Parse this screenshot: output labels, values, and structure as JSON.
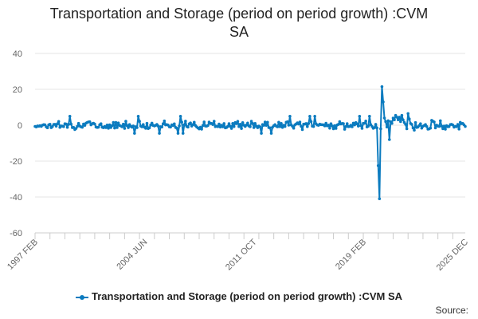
{
  "chart_data": {
    "type": "line",
    "title": "Transportation and Storage (period on period growth) :CVM SA",
    "title_lines": [
      "Transportation and Storage (period on period growth) :CVM",
      "SA"
    ],
    "xlabel": "",
    "ylabel": "",
    "ylim": [
      -60,
      40
    ],
    "yticks": [
      40,
      20,
      0,
      -20,
      -40,
      -60
    ],
    "x_range": [
      "1997 FEB",
      "2025 DEC"
    ],
    "xticks": [
      "1997 FEB",
      "2004 JUN",
      "2011 OCT",
      "2019 FEB",
      "2025 DEC"
    ],
    "grid": true,
    "legend_position": "bottom",
    "series": [
      {
        "name": "Transportation and Storage (period on period growth) :CVM SA",
        "color": "#0b7bbf",
        "frequency": "monthly",
        "start": "1997 FEB",
        "baseline_band": [
          -3,
          3
        ],
        "x": [
          "2019 DEC",
          "2020 JAN",
          "2020 FEB",
          "2020 MAR",
          "2020 APR",
          "2020 MAY",
          "2020 JUN",
          "2020 JUL",
          "2020 AUG",
          "2020 SEP",
          "2020 OCT",
          "2020 NOV",
          "2020 DEC",
          "2021 JAN",
          "2021 FEB",
          "2021 MAR",
          "2021 APR",
          "2021 MAY",
          "2021 JUN",
          "2021 JUL",
          "2021 AUG",
          "2021 SEP",
          "2021 OCT",
          "2021 NOV",
          "2021 DEC",
          "2022 JAN",
          "2022 FEB",
          "2022 MAR",
          "2022 APR",
          "2022 MAY",
          "2022 JUN"
        ],
        "values": [
          0.5,
          -1.5,
          -22.5,
          -41.0,
          -2.0,
          21.5,
          13.0,
          4.0,
          2.0,
          -1.0,
          2.5,
          -8.0,
          2.0,
          1.0,
          4.0,
          3.0,
          5.5,
          4.5,
          3.0,
          4.5,
          2.0,
          5.5,
          3.0,
          1.5,
          0.5,
          -2.0,
          6.5,
          3.5,
          1.0,
          0.5,
          -1.5
        ]
      }
    ]
  },
  "legend": {
    "label": "Transportation and Storage (period on period growth) :CVM SA"
  },
  "footer": {
    "source_label": "Source:"
  }
}
